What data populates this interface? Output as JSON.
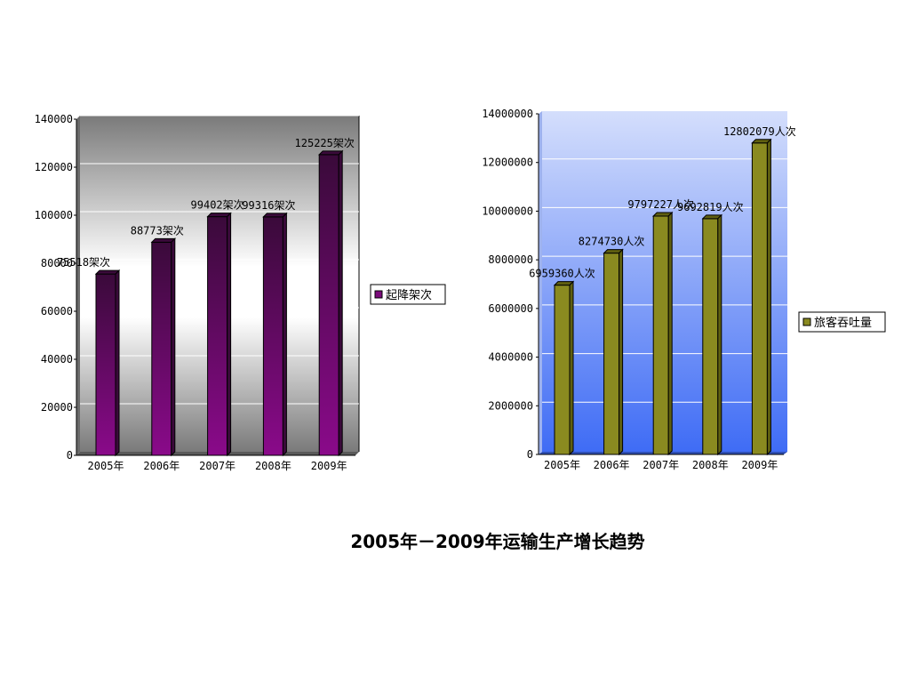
{
  "caption": "2005年－2009年运输生产增长趋势",
  "chart_data": [
    {
      "type": "bar",
      "categories": [
        "2005年",
        "2006年",
        "2007年",
        "2008年",
        "2009年"
      ],
      "series": [
        {
          "name": "起降架次",
          "values": [
            75518,
            88773,
            99402,
            99316,
            125225
          ]
        }
      ],
      "data_labels": [
        "75518架次",
        "88773架次",
        "99402架次",
        "99316架次",
        "125225架次"
      ],
      "ylim": [
        0,
        140000
      ],
      "yticks": [
        "0",
        "20000",
        "40000",
        "60000",
        "80000",
        "100000",
        "120000",
        "140000"
      ],
      "grid": true,
      "legend": "right",
      "colors": {
        "bar": "#7a0a7a",
        "bar_dark": "#3a0a3a"
      }
    },
    {
      "type": "bar",
      "categories": [
        "2005年",
        "2006年",
        "2007年",
        "2008年",
        "2009年"
      ],
      "series": [
        {
          "name": "旅客吞吐量",
          "values": [
            6959360,
            8274730,
            9797227,
            9692819,
            12802079
          ]
        }
      ],
      "data_labels": [
        "6959360人次",
        "8274730人次",
        "9797227人次",
        "9692819人次",
        "12802079人次"
      ],
      "ylim": [
        0,
        14000000
      ],
      "yticks": [
        "0",
        "2000000",
        "4000000",
        "6000000",
        "8000000",
        "10000000",
        "12000000",
        "14000000"
      ],
      "grid": true,
      "legend": "right",
      "colors": {
        "bar": "#8a8a20",
        "bar_dark": "#5f5f10"
      }
    }
  ]
}
